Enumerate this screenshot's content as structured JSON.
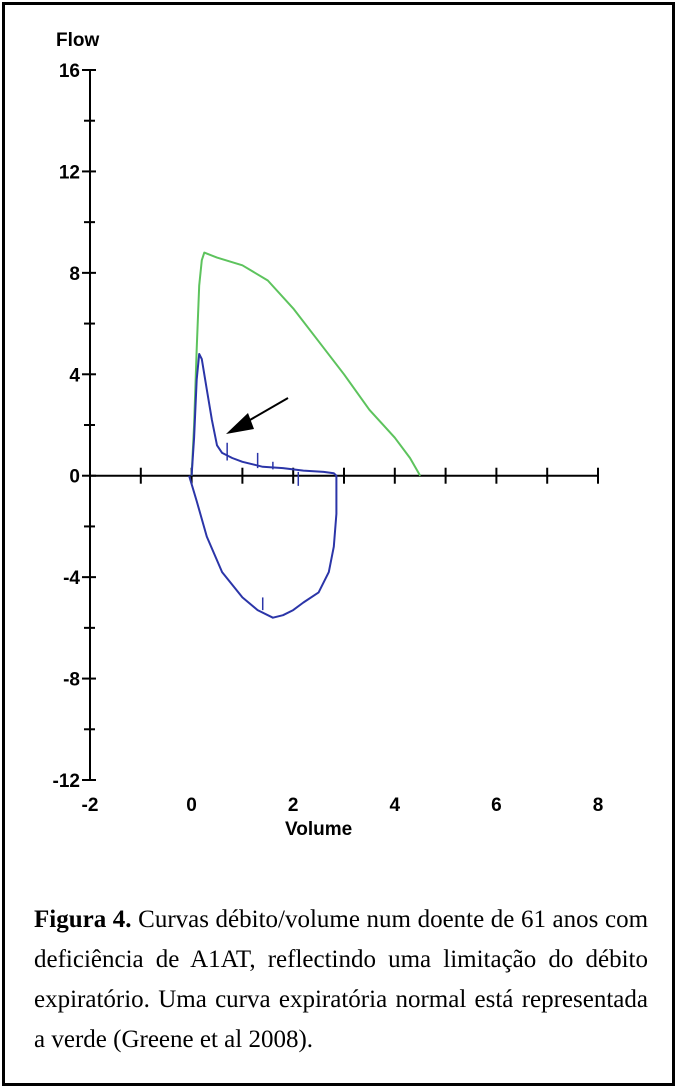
{
  "chart_data": {
    "type": "line",
    "ylabel": "Flow",
    "xlabel": "Volume",
    "xlim": [
      -2,
      8
    ],
    "ylim": [
      -12,
      16
    ],
    "x_ticks": [
      "-2",
      "0",
      "2",
      "4",
      "6",
      "8"
    ],
    "y_ticks": [
      "16",
      "12",
      "8",
      "4",
      "0",
      "-4",
      "-8",
      "-12"
    ],
    "grid": false,
    "series": [
      {
        "color": "#5dc35d",
        "points": [
          [
            0.0,
            0.0
          ],
          [
            0.05,
            2.0
          ],
          [
            0.1,
            5.0
          ],
          [
            0.15,
            7.5
          ],
          [
            0.2,
            8.5
          ],
          [
            0.25,
            8.8
          ],
          [
            0.5,
            8.6
          ],
          [
            1.0,
            8.3
          ],
          [
            1.5,
            7.7
          ],
          [
            2.0,
            6.6
          ],
          [
            2.5,
            5.3
          ],
          [
            3.0,
            4.0
          ],
          [
            3.5,
            2.6
          ],
          [
            4.0,
            1.5
          ],
          [
            4.3,
            0.7
          ],
          [
            4.5,
            0.0
          ]
        ]
      },
      {
        "color": "#2b35a8",
        "points": [
          [
            0.0,
            0.0
          ],
          [
            0.05,
            1.5
          ],
          [
            0.1,
            3.8
          ],
          [
            0.15,
            4.8
          ],
          [
            0.2,
            4.6
          ],
          [
            0.3,
            3.4
          ],
          [
            0.4,
            2.2
          ],
          [
            0.5,
            1.2
          ],
          [
            0.6,
            0.9
          ],
          [
            0.8,
            0.7
          ],
          [
            1.0,
            0.55
          ],
          [
            1.4,
            0.35
          ],
          [
            1.8,
            0.3
          ],
          [
            2.2,
            0.2
          ],
          [
            2.6,
            0.15
          ],
          [
            2.8,
            0.1
          ],
          [
            2.85,
            0.0
          ],
          [
            2.85,
            -1.5
          ],
          [
            2.8,
            -2.8
          ],
          [
            2.7,
            -3.8
          ],
          [
            2.5,
            -4.6
          ],
          [
            2.2,
            -5.0
          ],
          [
            2.0,
            -5.3
          ],
          [
            1.8,
            -5.5
          ],
          [
            1.6,
            -5.6
          ],
          [
            1.3,
            -5.3
          ],
          [
            1.0,
            -4.8
          ],
          [
            0.6,
            -3.8
          ],
          [
            0.3,
            -2.4
          ],
          [
            0.1,
            -1.0
          ],
          [
            -0.05,
            0.0
          ]
        ]
      }
    ],
    "annotation": "arrow pointing to the limited expiratory curve"
  },
  "caption": {
    "label": "Figura 4.",
    "text": " Curvas débito/volume num doente de 61 anos com deficiência de A1AT, reflectindo uma limitação do débito expiratório. Uma curva expiratória normal está representada a verde (Greene et al 2008)."
  }
}
